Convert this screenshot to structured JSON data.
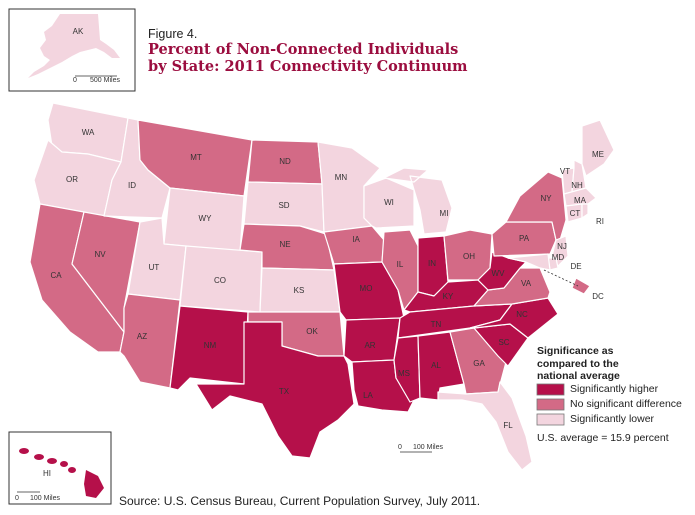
{
  "figure": {
    "label": "Figure 4.",
    "title_line1": "Percent of Non-Connected Individuals",
    "title_line2": "by State: 2011 Connectivity Continuum"
  },
  "legend": {
    "title_line1": "Significance as",
    "title_line2": "compared to the",
    "title_line3": "national average",
    "items": [
      {
        "label": "Significantly higher",
        "color": "#b5104a"
      },
      {
        "label": "No significant difference",
        "color": "#d36a86"
      },
      {
        "label": "Significantly lower",
        "color": "#f3d5df"
      }
    ]
  },
  "us_average": "U.S. average = 15.9 percent",
  "source": "Source: U.S. Census Bureau, Current Population Survey, July 2011.",
  "insets": {
    "alaska": {
      "label": "AK",
      "scale_zero": "0",
      "scale_label": "500 Miles"
    },
    "hawaii": {
      "label": "HI",
      "scale_zero": "0",
      "scale_label": "100 Miles"
    }
  },
  "main_scale": {
    "zero": "0",
    "label": "100 Miles"
  },
  "colors": {
    "higher": "#b5104a",
    "nodiff": "#d36a86",
    "lower": "#f3d5df",
    "border": "#ffffff",
    "title": "#9b0d3f"
  },
  "states": {
    "WA": "lower",
    "OR": "lower",
    "CA": "nodiff",
    "NV": "nodiff",
    "ID": "lower",
    "MT": "nodiff",
    "WY": "lower",
    "UT": "lower",
    "AZ": "nodiff",
    "CO": "lower",
    "NM": "higher",
    "ND": "nodiff",
    "SD": "lower",
    "NE": "nodiff",
    "KS": "lower",
    "OK": "nodiff",
    "TX": "higher",
    "MN": "lower",
    "IA": "nodiff",
    "MO": "higher",
    "AR": "higher",
    "LA": "higher",
    "WI": "lower",
    "IL": "nodiff",
    "MI": "lower",
    "IN": "higher",
    "OH": "nodiff",
    "KY": "higher",
    "TN": "higher",
    "MS": "higher",
    "AL": "higher",
    "GA": "nodiff",
    "FL": "lower",
    "SC": "higher",
    "NC": "higher",
    "VA": "nodiff",
    "WV": "higher",
    "PA": "nodiff",
    "NY": "nodiff",
    "VT": "lower",
    "NH": "lower",
    "ME": "lower",
    "MA": "lower",
    "CT": "lower",
    "RI": "lower",
    "NJ": "lower",
    "DE": "lower",
    "MD": "lower",
    "DC": "nodiff",
    "AK": "lower",
    "HI": "higher"
  }
}
